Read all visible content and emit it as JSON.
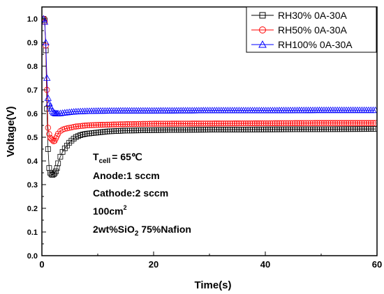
{
  "chart_data": {
    "type": "scatter",
    "xlabel": "Time(s)",
    "ylabel": "Voltage(V)",
    "xlim": [
      0,
      60
    ],
    "ylim": [
      0.0,
      1.05
    ],
    "xticks": [
      "0",
      "20",
      "40",
      "60"
    ],
    "yticks": [
      "0.0",
      "0.1",
      "0.2",
      "0.3",
      "0.4",
      "0.5",
      "0.6",
      "0.7",
      "0.8",
      "0.9",
      "1.0"
    ],
    "legend_position": "top-right",
    "series": [
      {
        "name": "RH30% 0A-30A",
        "marker": "square",
        "color": "#000000",
        "points": [
          [
            0.3,
            1.0
          ],
          [
            0.6,
            0.99
          ],
          [
            0.9,
            0.62
          ],
          [
            1.1,
            0.45
          ],
          [
            1.3,
            0.37
          ],
          [
            1.5,
            0.35
          ],
          [
            1.8,
            0.34
          ],
          [
            2.2,
            0.345
          ],
          [
            2.6,
            0.36
          ],
          [
            3.0,
            0.4
          ],
          [
            3.5,
            0.43
          ],
          [
            4.0,
            0.45
          ],
          [
            5.0,
            0.48
          ],
          [
            6.0,
            0.5
          ],
          [
            7.0,
            0.51
          ],
          [
            8.0,
            0.515
          ],
          [
            10.0,
            0.52
          ],
          [
            12.0,
            0.525
          ],
          [
            15.0,
            0.528
          ],
          [
            20.0,
            0.53
          ],
          [
            30.0,
            0.532
          ],
          [
            40.0,
            0.533
          ],
          [
            50.0,
            0.534
          ],
          [
            60.0,
            0.535
          ]
        ]
      },
      {
        "name": "RH50% 0A-30A",
        "marker": "circle",
        "color": "#ff0000",
        "points": [
          [
            0.3,
            1.0
          ],
          [
            0.6,
            0.98
          ],
          [
            0.9,
            0.7
          ],
          [
            1.1,
            0.54
          ],
          [
            1.4,
            0.5
          ],
          [
            1.8,
            0.49
          ],
          [
            2.2,
            0.48
          ],
          [
            2.6,
            0.5
          ],
          [
            3.0,
            0.52
          ],
          [
            3.5,
            0.53
          ],
          [
            4.0,
            0.535
          ],
          [
            5.0,
            0.54
          ],
          [
            6.0,
            0.545
          ],
          [
            8.0,
            0.55
          ],
          [
            10.0,
            0.552
          ],
          [
            15.0,
            0.555
          ],
          [
            20.0,
            0.557
          ],
          [
            30.0,
            0.558
          ],
          [
            40.0,
            0.559
          ],
          [
            50.0,
            0.56
          ],
          [
            60.0,
            0.56
          ]
        ]
      },
      {
        "name": "RH100% 0A-30A",
        "marker": "triangle",
        "color": "#0000ff",
        "points": [
          [
            0.3,
            1.0
          ],
          [
            0.6,
            0.98
          ],
          [
            0.8,
            0.82
          ],
          [
            1.0,
            0.68
          ],
          [
            1.2,
            0.65
          ],
          [
            1.5,
            0.63
          ],
          [
            2.0,
            0.605
          ],
          [
            2.5,
            0.6
          ],
          [
            3.0,
            0.6
          ],
          [
            4.0,
            0.603
          ],
          [
            5.0,
            0.606
          ],
          [
            6.0,
            0.608
          ],
          [
            8.0,
            0.61
          ],
          [
            10.0,
            0.611
          ],
          [
            15.0,
            0.612
          ],
          [
            20.0,
            0.612
          ],
          [
            30.0,
            0.613
          ],
          [
            40.0,
            0.613
          ],
          [
            50.0,
            0.614
          ],
          [
            60.0,
            0.614
          ]
        ]
      }
    ],
    "annotations": {
      "tcell_prefix": "T",
      "tcell_sub": "cell",
      "tcell_value": "= 65℃",
      "anode": "Anode:1 sccm",
      "cathode": "Cathode:2 sccm",
      "area_value": "100cm",
      "area_sup": "2",
      "membrane_a": "2wt%SiO",
      "membrane_sub": "2",
      "membrane_b": " 75%Nafion"
    }
  }
}
